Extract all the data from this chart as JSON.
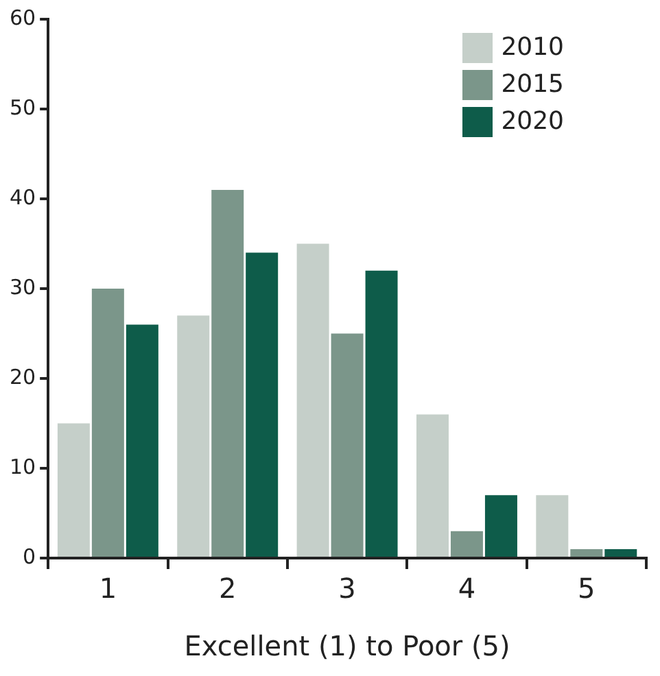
{
  "chart_data": {
    "type": "bar",
    "xlabel": "Excellent (1) to Poor (5)",
    "categories": [
      "1",
      "2",
      "3",
      "4",
      "5"
    ],
    "series": [
      {
        "name": "2010",
        "color": "#c5cfc9",
        "values": [
          15,
          27,
          35,
          16,
          7
        ]
      },
      {
        "name": "2015",
        "color": "#7b968a",
        "values": [
          30,
          41,
          25,
          3,
          1
        ]
      },
      {
        "name": "2020",
        "color": "#0e5c4a",
        "values": [
          26,
          34,
          32,
          7,
          1
        ]
      }
    ],
    "ylim": [
      0,
      60
    ],
    "yticks": [
      0,
      10,
      20,
      30,
      40,
      50,
      60
    ],
    "grid": false,
    "legend": "top right"
  }
}
